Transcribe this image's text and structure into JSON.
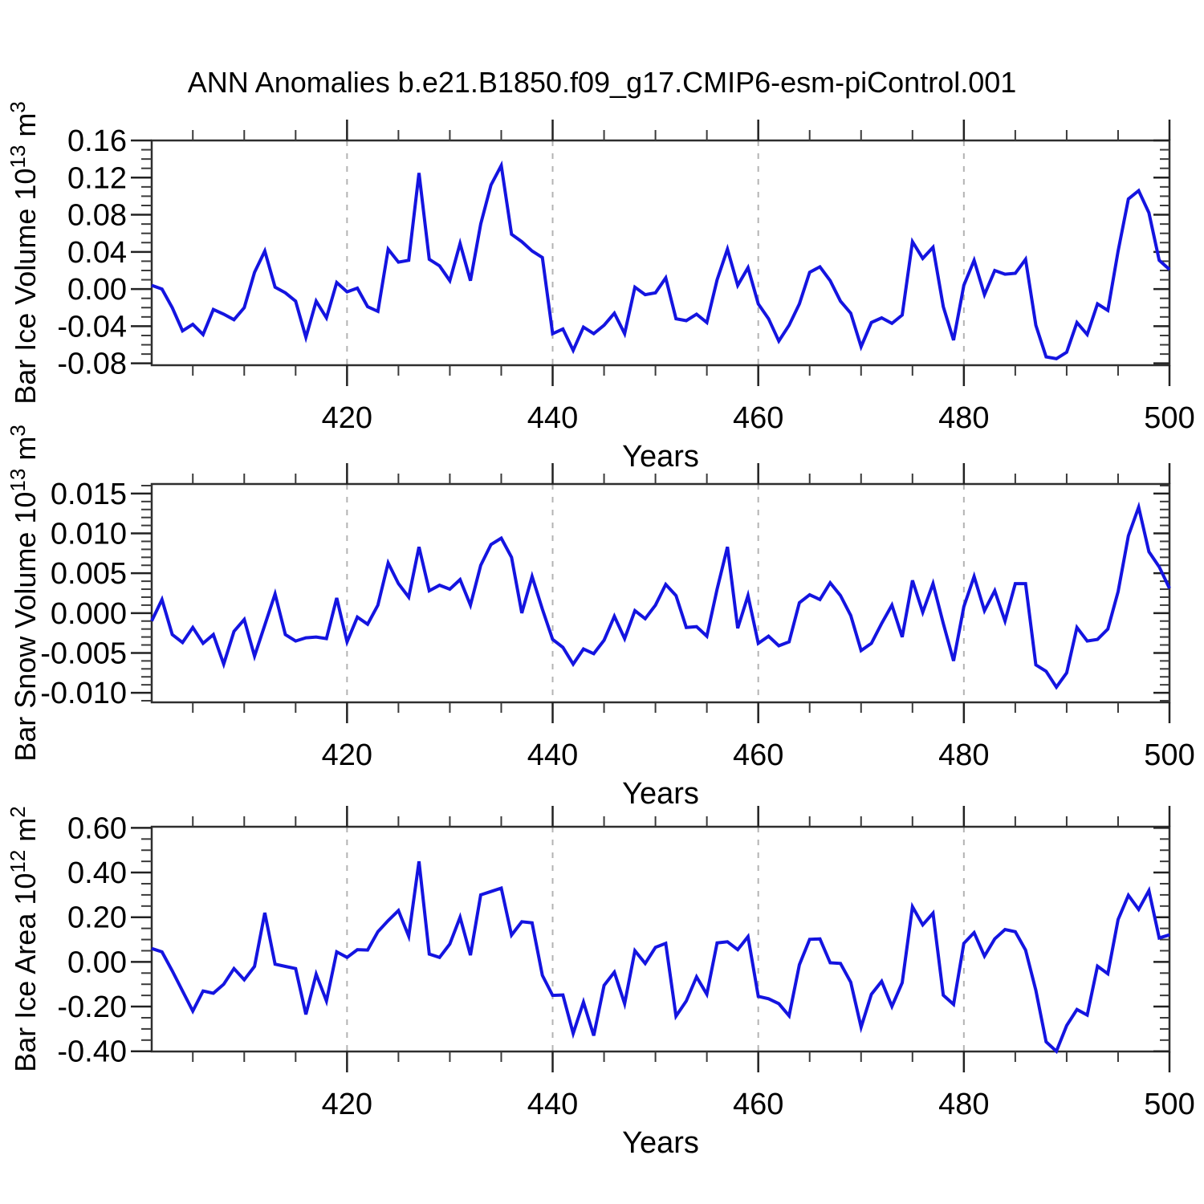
{
  "title": "ANN Anomalies b.e21.B1850.f09_g17.CMIP6-esm-piControl.001",
  "colors": {
    "series_line": "#1414e0",
    "frame": "#2e2e2e",
    "gridline": "#b3b3b3",
    "text": "#000000",
    "background": "#ffffff"
  },
  "xaxis": {
    "title": "Years",
    "xlim": [
      401,
      500
    ],
    "minor_tick_step": 5,
    "dashed_gridlines_at": [
      420,
      440,
      460,
      480
    ],
    "major_ticks": [
      {
        "v": 420,
        "label": "420"
      },
      {
        "v": 440,
        "label": "440"
      },
      {
        "v": 460,
        "label": "460"
      },
      {
        "v": 480,
        "label": "480"
      },
      {
        "v": 500,
        "label": "500"
      }
    ]
  },
  "chart_data": [
    {
      "type": "line",
      "id": "ice-volume",
      "title": "",
      "ylabel": "Bar Ice Volume 10^13 m^3",
      "ylabel_segments": [
        {
          "text": "Bar Ice Volume 10",
          "sup": false
        },
        {
          "text": "13",
          "sup": true
        },
        {
          "text": " m",
          "sup": false
        },
        {
          "text": "3",
          "sup": true
        }
      ],
      "xlabel": "Years",
      "ylim": [
        -0.082,
        0.16
      ],
      "y_minor_step": 0.01,
      "yticks": [
        {
          "v": 0.16,
          "label": "0.16"
        },
        {
          "v": 0.12,
          "label": "0.12"
        },
        {
          "v": 0.08,
          "label": "0.08"
        },
        {
          "v": 0.04,
          "label": "0.04"
        },
        {
          "v": 0.0,
          "label": "0.00"
        },
        {
          "v": -0.04,
          "label": "-0.04"
        },
        {
          "v": -0.08,
          "label": "-0.08"
        }
      ],
      "x": [
        401,
        402,
        403,
        404,
        405,
        406,
        407,
        408,
        409,
        410,
        411,
        412,
        413,
        414,
        415,
        416,
        417,
        418,
        419,
        420,
        421,
        422,
        423,
        424,
        425,
        426,
        427,
        428,
        429,
        430,
        431,
        432,
        433,
        434,
        435,
        436,
        437,
        438,
        439,
        440,
        441,
        442,
        443,
        444,
        445,
        446,
        447,
        448,
        449,
        450,
        451,
        452,
        453,
        454,
        455,
        456,
        457,
        458,
        459,
        460,
        461,
        462,
        463,
        464,
        465,
        466,
        467,
        468,
        469,
        470,
        471,
        472,
        473,
        474,
        475,
        476,
        477,
        478,
        479,
        480,
        481,
        482,
        483,
        484,
        485,
        486,
        487,
        488,
        489,
        490,
        491,
        492,
        493,
        494,
        495,
        496,
        497,
        498,
        499,
        500
      ],
      "values": [
        0.004,
        0.0,
        -0.02,
        -0.045,
        -0.038,
        -0.049,
        -0.022,
        -0.027,
        -0.033,
        -0.02,
        0.018,
        0.041,
        0.002,
        -0.004,
        -0.013,
        -0.052,
        -0.013,
        -0.031,
        0.007,
        -0.003,
        0.001,
        -0.019,
        -0.024,
        0.043,
        0.029,
        0.031,
        0.125,
        0.032,
        0.025,
        0.009,
        0.049,
        0.009,
        0.07,
        0.112,
        0.133,
        0.059,
        0.051,
        0.041,
        0.034,
        -0.048,
        -0.043,
        -0.066,
        -0.041,
        -0.048,
        -0.039,
        -0.026,
        -0.048,
        0.002,
        -0.006,
        -0.004,
        0.012,
        -0.032,
        -0.034,
        -0.027,
        -0.036,
        0.01,
        0.043,
        0.004,
        0.023,
        -0.016,
        -0.032,
        -0.056,
        -0.039,
        -0.016,
        0.018,
        0.024,
        0.009,
        -0.013,
        -0.026,
        -0.062,
        -0.036,
        -0.031,
        -0.037,
        -0.028,
        0.051,
        0.033,
        0.045,
        -0.019,
        -0.055,
        0.004,
        0.031,
        -0.006,
        0.02,
        0.016,
        0.017,
        0.032,
        -0.039,
        -0.073,
        -0.075,
        -0.068,
        -0.036,
        -0.049,
        -0.016,
        -0.023,
        0.041,
        0.097,
        0.106,
        0.082,
        0.031,
        0.021
      ]
    },
    {
      "type": "line",
      "id": "snow-volume",
      "title": "",
      "ylabel": "Bar Snow Volume 10^13 m^3",
      "ylabel_segments": [
        {
          "text": "Bar Snow Volume 10",
          "sup": false
        },
        {
          "text": "13",
          "sup": true
        },
        {
          "text": " m",
          "sup": false
        },
        {
          "text": "3",
          "sup": true
        }
      ],
      "xlabel": "Years",
      "ylim": [
        -0.0112,
        0.0162
      ],
      "y_minor_step": 0.001,
      "yticks": [
        {
          "v": 0.015,
          "label": "0.015"
        },
        {
          "v": 0.01,
          "label": "0.010"
        },
        {
          "v": 0.005,
          "label": "0.005"
        },
        {
          "v": 0.0,
          "label": "0.000"
        },
        {
          "v": -0.005,
          "label": "-0.005"
        },
        {
          "v": -0.01,
          "label": "-0.010"
        }
      ],
      "x": [
        401,
        402,
        403,
        404,
        405,
        406,
        407,
        408,
        409,
        410,
        411,
        412,
        413,
        414,
        415,
        416,
        417,
        418,
        419,
        420,
        421,
        422,
        423,
        424,
        425,
        426,
        427,
        428,
        429,
        430,
        431,
        432,
        433,
        434,
        435,
        436,
        437,
        438,
        439,
        440,
        441,
        442,
        443,
        444,
        445,
        446,
        447,
        448,
        449,
        450,
        451,
        452,
        453,
        454,
        455,
        456,
        457,
        458,
        459,
        460,
        461,
        462,
        463,
        464,
        465,
        466,
        467,
        468,
        469,
        470,
        471,
        472,
        473,
        474,
        475,
        476,
        477,
        478,
        479,
        480,
        481,
        482,
        483,
        484,
        485,
        486,
        487,
        488,
        489,
        490,
        491,
        492,
        493,
        494,
        495,
        496,
        497,
        498,
        499,
        500
      ],
      "values": [
        -0.001,
        0.0017,
        -0.0027,
        -0.0037,
        -0.0018,
        -0.0038,
        -0.0027,
        -0.0064,
        -0.0023,
        -0.0008,
        -0.0054,
        -0.0015,
        0.0024,
        -0.0027,
        -0.0035,
        -0.0031,
        -0.003,
        -0.0032,
        0.0019,
        -0.0036,
        -0.0005,
        -0.0014,
        0.001,
        0.0063,
        0.0037,
        0.002,
        0.0083,
        0.0028,
        0.0035,
        0.003,
        0.0042,
        0.001,
        0.006,
        0.0086,
        0.0094,
        0.007,
        0.0,
        0.0046,
        0.0005,
        -0.0033,
        -0.0043,
        -0.0064,
        -0.0045,
        -0.0051,
        -0.0034,
        -0.0004,
        -0.0032,
        0.0003,
        -0.0007,
        0.001,
        0.0036,
        0.0022,
        -0.0018,
        -0.0017,
        -0.0029,
        0.003,
        0.0083,
        -0.0019,
        0.0022,
        -0.0038,
        -0.0029,
        -0.0041,
        -0.0036,
        0.0013,
        0.0023,
        0.0017,
        0.0038,
        0.0022,
        -0.0003,
        -0.0047,
        -0.0038,
        -0.0013,
        0.001,
        -0.003,
        0.0041,
        0.0001,
        0.0037,
        -0.0013,
        -0.006,
        0.0008,
        0.0046,
        0.0003,
        0.0028,
        -0.001,
        0.0037,
        0.0037,
        -0.0065,
        -0.0073,
        -0.0093,
        -0.0075,
        -0.0018,
        -0.0035,
        -0.0033,
        -0.002,
        0.0027,
        0.0097,
        0.0133,
        0.0077,
        0.0058,
        0.0031
      ]
    },
    {
      "type": "line",
      "id": "ice-area",
      "title": "",
      "ylabel": "Bar Ice Area 10^12 m^2",
      "ylabel_segments": [
        {
          "text": "Bar Ice Area 10",
          "sup": false
        },
        {
          "text": "12",
          "sup": true
        },
        {
          "text": " m",
          "sup": false
        },
        {
          "text": "2",
          "sup": true
        }
      ],
      "xlabel": "Years",
      "ylim": [
        -0.401,
        0.605
      ],
      "y_minor_step": 0.05,
      "yticks": [
        {
          "v": 0.6,
          "label": "0.60"
        },
        {
          "v": 0.4,
          "label": "0.40"
        },
        {
          "v": 0.2,
          "label": "0.20"
        },
        {
          "v": 0.0,
          "label": "0.00"
        },
        {
          "v": -0.2,
          "label": "-0.20"
        },
        {
          "v": -0.4,
          "label": "-0.40"
        }
      ],
      "x": [
        401,
        402,
        403,
        404,
        405,
        406,
        407,
        408,
        409,
        410,
        411,
        412,
        413,
        414,
        415,
        416,
        417,
        418,
        419,
        420,
        421,
        422,
        423,
        424,
        425,
        426,
        427,
        428,
        429,
        430,
        431,
        432,
        433,
        434,
        435,
        436,
        437,
        438,
        439,
        440,
        441,
        442,
        443,
        444,
        445,
        446,
        447,
        448,
        449,
        450,
        451,
        452,
        453,
        454,
        455,
        456,
        457,
        458,
        459,
        460,
        461,
        462,
        463,
        464,
        465,
        466,
        467,
        468,
        469,
        470,
        471,
        472,
        473,
        474,
        475,
        476,
        477,
        478,
        479,
        480,
        481,
        482,
        483,
        484,
        485,
        486,
        487,
        488,
        489,
        490,
        491,
        492,
        493,
        494,
        495,
        496,
        497,
        498,
        499,
        500
      ],
      "values": [
        0.06,
        0.045,
        -0.04,
        -0.13,
        -0.22,
        -0.13,
        -0.14,
        -0.1,
        -0.03,
        -0.08,
        -0.02,
        0.22,
        -0.01,
        -0.02,
        -0.03,
        -0.235,
        -0.055,
        -0.175,
        0.045,
        0.02,
        0.055,
        0.053,
        0.135,
        0.185,
        0.23,
        0.115,
        0.45,
        0.035,
        0.02,
        0.08,
        0.2,
        0.03,
        0.3,
        0.315,
        0.33,
        0.12,
        0.18,
        0.175,
        -0.06,
        -0.15,
        -0.148,
        -0.32,
        -0.18,
        -0.33,
        -0.105,
        -0.046,
        -0.187,
        0.05,
        -0.007,
        0.065,
        0.083,
        -0.243,
        -0.175,
        -0.067,
        -0.145,
        0.085,
        0.09,
        0.055,
        0.113,
        -0.154,
        -0.165,
        -0.187,
        -0.241,
        -0.013,
        0.101,
        0.103,
        -0.004,
        -0.007,
        -0.091,
        -0.292,
        -0.145,
        -0.087,
        -0.199,
        -0.093,
        0.247,
        0.166,
        0.218,
        -0.149,
        -0.19,
        0.083,
        0.131,
        0.026,
        0.103,
        0.145,
        0.135,
        0.053,
        -0.127,
        -0.358,
        -0.4,
        -0.285,
        -0.213,
        -0.238,
        -0.019,
        -0.053,
        0.19,
        0.298,
        0.235,
        0.319,
        0.107,
        0.121
      ]
    }
  ]
}
